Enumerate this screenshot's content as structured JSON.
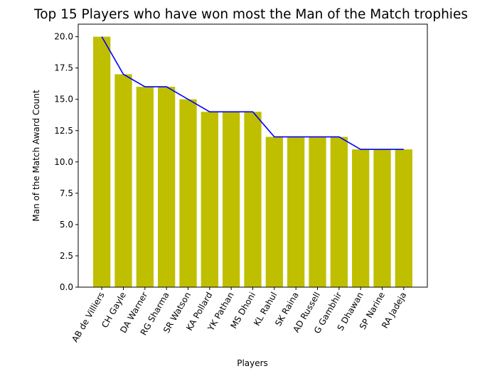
{
  "chart_data": {
    "type": "bar",
    "title": "Top 15 Players who have won most the Man of the Match trophies",
    "xlabel": "Players",
    "ylabel": "Man of the Match Award Count",
    "categories": [
      "AB de Villiers",
      "CH Gayle",
      "DA Warner",
      "RG Sharma",
      "SR Watson",
      "KA Pollard",
      "YK Pathan",
      "MS Dhoni",
      "KL Rahul",
      "SK Raina",
      "AD Russell",
      "G Gambhir",
      "S Dhawan",
      "SP Narine",
      "RA Jadeja"
    ],
    "values": [
      20,
      17,
      16,
      16,
      15,
      14,
      14,
      14,
      12,
      12,
      12,
      12,
      11,
      11,
      11
    ],
    "ylim": [
      0,
      21
    ],
    "yticks": [
      "0.0",
      "2.5",
      "5.0",
      "7.5",
      "10.0",
      "12.5",
      "15.0",
      "17.5",
      "20.0"
    ],
    "bar_color": "#bfbf00",
    "line_color": "#0000ff",
    "line_overlay": true,
    "grid": false,
    "legend": "none"
  }
}
